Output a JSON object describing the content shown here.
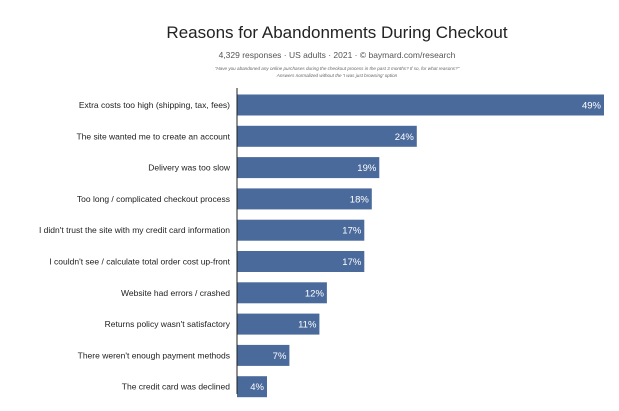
{
  "chart_data": {
    "type": "bar",
    "title": "Reasons for Abandonments During Checkout",
    "subtitle": "4,329 responses · US adults · 2021 · © baymard.com/research",
    "note_line_1": "\"Have you abandoned any online purchases during the checkout process in the past 3 months? If so, for what reasons?\"",
    "note_line_2": "Answers normalized without the 'I was just browsing' option",
    "orientation": "horizontal",
    "categories": [
      "Extra costs too high (shipping, tax, fees)",
      "The site wanted me to create an account",
      "Delivery was too slow",
      "Too long / complicated checkout process",
      "I didn't trust the site with my credit card information",
      "I couldn't see / calculate total order cost up-front",
      "Website had errors / crashed",
      "Returns policy wasn't satisfactory",
      "There weren't enough payment methods",
      "The credit card was declined"
    ],
    "values": [
      49,
      24,
      19,
      18,
      17,
      17,
      12,
      11,
      7,
      4
    ],
    "value_labels": [
      "49%",
      "24%",
      "19%",
      "18%",
      "17%",
      "17%",
      "12%",
      "11%",
      "7%",
      "4%"
    ],
    "xlim": [
      0,
      49
    ],
    "bar_color": "#4a6a9b",
    "label_color": "#ffffff",
    "grid": false,
    "legend": "none"
  }
}
